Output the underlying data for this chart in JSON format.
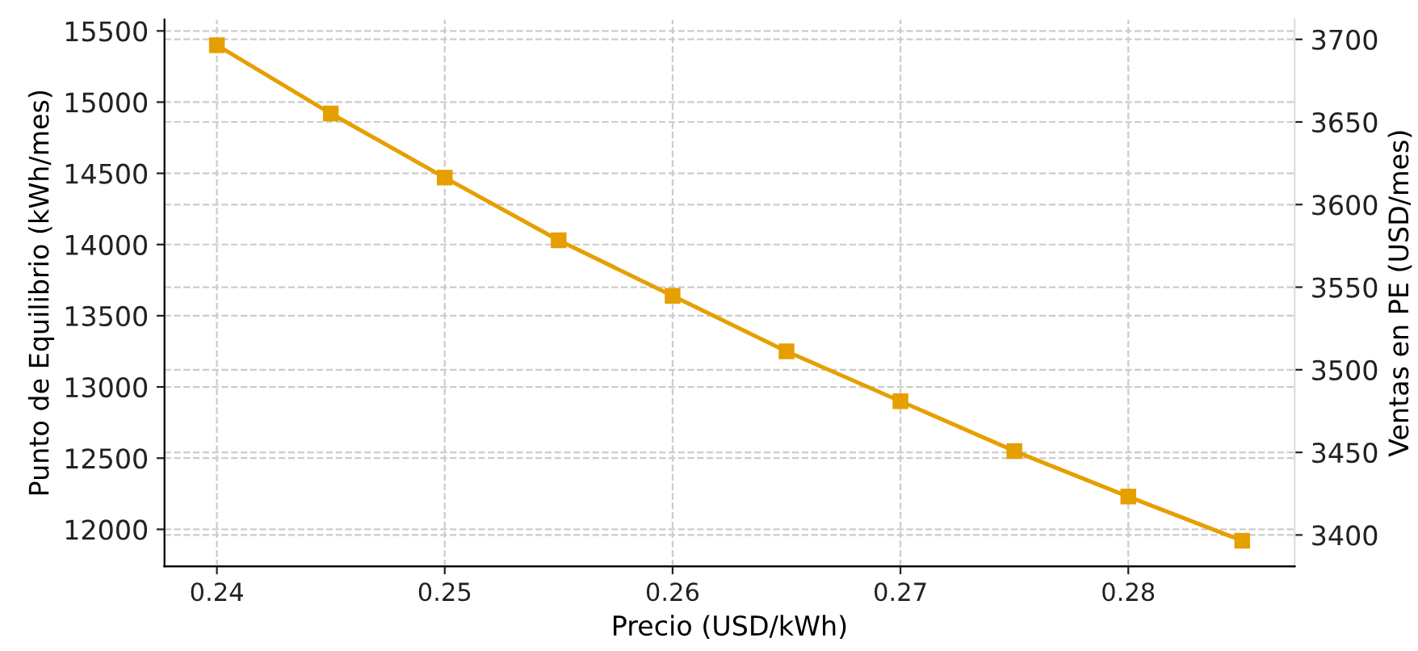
{
  "chart_data": {
    "type": "line",
    "xlabel": "Precio (USD/kWh)",
    "ylabel": "Punto de Equilibrio (kWh/mes)",
    "y2label": "Ventas en PE (USD/mes)",
    "x": [
      0.24,
      0.245,
      0.25,
      0.255,
      0.26,
      0.265,
      0.27,
      0.275,
      0.28,
      0.285
    ],
    "series": [
      {
        "color": "#e69f00",
        "values": [
          15400,
          14920,
          14470,
          14030,
          13640,
          13250,
          12900,
          12550,
          12230,
          11920
        ]
      }
    ],
    "xlim": [
      0.2377,
      0.2873
    ],
    "xticks": [
      0.24,
      0.25,
      0.26,
      0.27,
      0.28
    ],
    "ylim": [
      11740,
      15580
    ],
    "yticks": [
      12000,
      12500,
      13000,
      13500,
      14000,
      14500,
      15000,
      15500
    ],
    "y2lim": [
      3381,
      3712
    ],
    "y2ticks": [
      3400,
      3450,
      3500,
      3550,
      3600,
      3650,
      3700
    ],
    "grid": true,
    "marker": "square",
    "line_style": "solid"
  }
}
